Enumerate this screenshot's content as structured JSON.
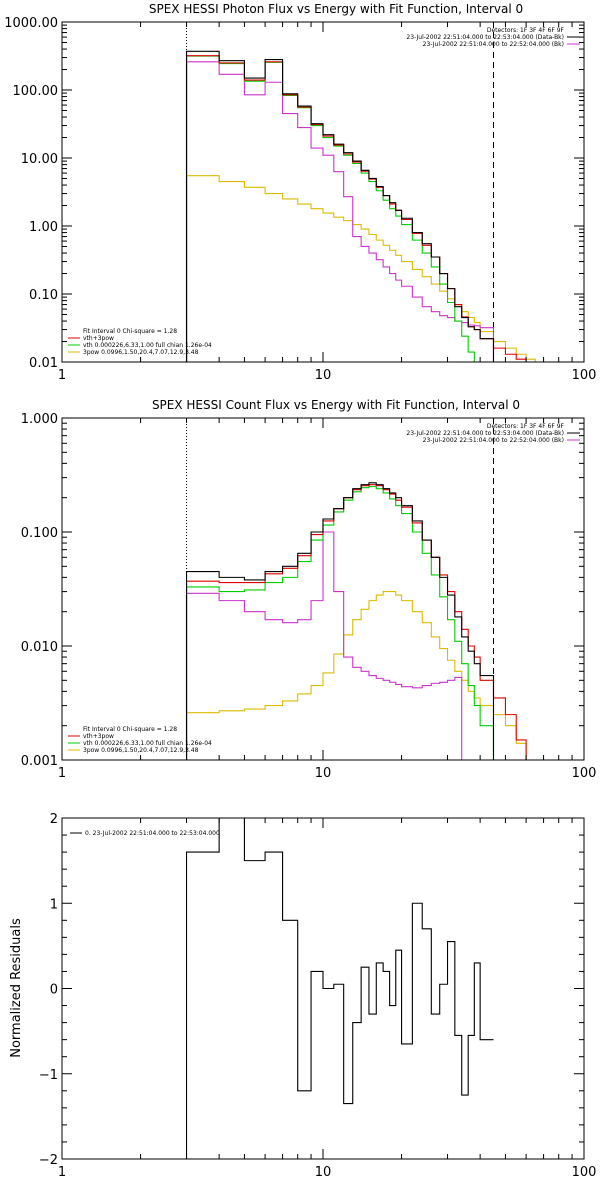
{
  "chart_data": [
    {
      "type": "line",
      "step": true,
      "title": "SPEX HESSI Photon Flux vs Energy with Fit Function, Interval 0",
      "xlabel": "",
      "ylabel": "",
      "xscale": "log",
      "yscale": "log",
      "xlim": [
        1,
        100
      ],
      "ylim": [
        0.01,
        1000
      ],
      "x_tick_labels": [
        {
          "v": 1,
          "label": "1"
        },
        {
          "v": 10,
          "label": "10"
        },
        {
          "v": 100,
          "label": "100"
        }
      ],
      "y_tick_labels": [
        {
          "v": 0.01,
          "label": "0.01"
        },
        {
          "v": 0.1,
          "label": "0.10"
        },
        {
          "v": 1,
          "label": "1.00"
        },
        {
          "v": 10,
          "label": "10.00"
        },
        {
          "v": 100,
          "label": "100.00"
        },
        {
          "v": 1000,
          "label": "1000.00"
        }
      ],
      "vlines": [
        {
          "name": "energy-range-low-line",
          "x": 3,
          "style": "dotted"
        },
        {
          "name": "energy-range-high-line",
          "x": 45,
          "style": "dashed"
        }
      ],
      "legend_top": {
        "placement": "top-right",
        "entries": [
          {
            "text": "Detectors: 1F 3F 4F 6F 9F",
            "color": ""
          },
          {
            "text": "23-Jul-2002 22:51:04.000 to 22:53:04.000 (Data-Bk)",
            "color": "#000000"
          },
          {
            "text": "23-Jul-2002 22:51:04.000 to 22:52:04.000 (Bk)",
            "color": "#cc33cc"
          }
        ]
      },
      "legend_bottom": {
        "placement": "bottom-left",
        "entries": [
          {
            "text": "Fit Interval 0   Chi-square = 1.28",
            "color": ""
          },
          {
            "text": "vth+3pow",
            "color": "#dd0000"
          },
          {
            "text": "vth 0.000226,6.33,1.00   full chian 1.26e-04",
            "color": "#00cc00"
          },
          {
            "text": "3pow 0.0996,1.50,20.4,7.07,12.9,3.48",
            "color": "#ddbb00"
          }
        ]
      },
      "edges": [
        3,
        4,
        5,
        6,
        7,
        8,
        9,
        10,
        11,
        12,
        13,
        14,
        15,
        16,
        17,
        18,
        19,
        20,
        22,
        24,
        26,
        28,
        30,
        32,
        34,
        36,
        38,
        40,
        45,
        50,
        55,
        60,
        65
      ],
      "series": [
        {
          "key": "data",
          "color": "#000000",
          "values": [
            370,
            270,
            150,
            280,
            88,
            58,
            32,
            22,
            16,
            12,
            9,
            6.6,
            5,
            3.8,
            2.8,
            2.2,
            1.7,
            1.3,
            0.8,
            0.55,
            0.35,
            0.2,
            0.12,
            0.065,
            0.045,
            0.033,
            0.03,
            0.022,
            null,
            null,
            null,
            null
          ]
        },
        {
          "key": "fit-total",
          "color": "#dd0000",
          "values": [
            320,
            250,
            140,
            260,
            85,
            56,
            31,
            21,
            15.5,
            11.5,
            8.7,
            6.4,
            4.9,
            3.7,
            2.8,
            2.1,
            1.7,
            1.25,
            0.78,
            0.52,
            0.35,
            0.2,
            0.12,
            0.07,
            0.046,
            0.033,
            0.03,
            0.022,
            0.016,
            0.013,
            0.011,
            0.01
          ]
        },
        {
          "key": "vth",
          "color": "#00cc00",
          "values": [
            315,
            245,
            135,
            255,
            83,
            55,
            30,
            20,
            15,
            11,
            8.3,
            6,
            4.5,
            3.3,
            2.4,
            1.8,
            1.4,
            1.05,
            0.62,
            0.4,
            0.25,
            0.14,
            0.075,
            0.04,
            0.024,
            0.014,
            0.01,
            null,
            null,
            null,
            null,
            null
          ]
        },
        {
          "key": "background",
          "color": "#cc33cc",
          "values": [
            260,
            170,
            85,
            130,
            45,
            28,
            14,
            11,
            6.3,
            2.7,
            0.7,
            0.5,
            0.4,
            0.32,
            0.25,
            0.2,
            0.16,
            0.13,
            0.09,
            0.065,
            0.055,
            0.048,
            0.045,
            0.04,
            0.038,
            0.035,
            0.034,
            0.032,
            null,
            null,
            null,
            null
          ]
        },
        {
          "key": "3pow",
          "color": "#ddbb00",
          "values": [
            5.5,
            4.5,
            3.7,
            3.0,
            2.5,
            2.1,
            1.8,
            1.55,
            1.35,
            1.2,
            1.05,
            0.9,
            0.75,
            0.62,
            0.52,
            0.44,
            0.37,
            0.3,
            0.23,
            0.18,
            0.14,
            0.11,
            0.085,
            0.07,
            0.055,
            0.045,
            0.038,
            0.028,
            0.02,
            0.016,
            0.013,
            0.011
          ]
        }
      ]
    },
    {
      "type": "line",
      "step": true,
      "title": "SPEX HESSI Count Flux vs Energy with Fit Function, Interval 0",
      "xlabel": "",
      "ylabel": "",
      "xscale": "log",
      "yscale": "log",
      "xlim": [
        1,
        100
      ],
      "ylim": [
        0.001,
        1
      ],
      "x_tick_labels": [
        {
          "v": 1,
          "label": "1"
        },
        {
          "v": 10,
          "label": "10"
        },
        {
          "v": 100,
          "label": "100"
        }
      ],
      "y_tick_labels": [
        {
          "v": 0.001,
          "label": "0.001"
        },
        {
          "v": 0.01,
          "label": "0.010"
        },
        {
          "v": 0.1,
          "label": "0.100"
        },
        {
          "v": 1,
          "label": "1.000"
        }
      ],
      "vlines": [
        {
          "name": "energy-range-low-line",
          "x": 3,
          "style": "dotted"
        },
        {
          "name": "energy-range-high-line",
          "x": 45,
          "style": "dashed"
        }
      ],
      "legend_top": {
        "placement": "top-right",
        "entries": [
          {
            "text": "Detectors: 1F 3F 4F 6F 9F",
            "color": ""
          },
          {
            "text": "23-Jul-2002 22:51:04.000 to 22:53:04.000 (Data-Bk)",
            "color": "#000000"
          },
          {
            "text": "23-Jul-2002 22:51:04.000 to 22:52:04.000 (Bk)",
            "color": "#cc33cc"
          }
        ]
      },
      "legend_bottom": {
        "placement": "bottom-left",
        "entries": [
          {
            "text": "Fit Interval 0   Chi-square = 1.28",
            "color": ""
          },
          {
            "text": "vth+3pow",
            "color": "#dd0000"
          },
          {
            "text": "vth 0.000226,6.33,1.00   full chian 1.26e-04",
            "color": "#00cc00"
          },
          {
            "text": "3pow 0.0996,1.50,20.4,7.07,12.9,3.48",
            "color": "#ddbb00"
          }
        ]
      },
      "edges": [
        3,
        4,
        5,
        6,
        7,
        8,
        9,
        10,
        11,
        12,
        13,
        14,
        15,
        16,
        17,
        18,
        19,
        20,
        22,
        24,
        26,
        28,
        30,
        32,
        34,
        36,
        38,
        40,
        45,
        50,
        55,
        60,
        65
      ],
      "series": [
        {
          "key": "data",
          "color": "#000000",
          "values": [
            0.045,
            0.04,
            0.038,
            0.045,
            0.05,
            0.065,
            0.1,
            0.13,
            0.16,
            0.2,
            0.24,
            0.26,
            0.27,
            0.26,
            0.24,
            0.22,
            0.2,
            0.17,
            0.125,
            0.085,
            0.06,
            0.04,
            0.028,
            0.018,
            0.012,
            0.009,
            0.007,
            0.0055,
            null,
            null,
            null,
            null
          ]
        },
        {
          "key": "fit-total",
          "color": "#dd0000",
          "values": [
            0.037,
            0.036,
            0.036,
            0.043,
            0.048,
            0.062,
            0.095,
            0.125,
            0.16,
            0.2,
            0.235,
            0.255,
            0.26,
            0.255,
            0.235,
            0.215,
            0.19,
            0.165,
            0.12,
            0.085,
            0.06,
            0.042,
            0.03,
            0.02,
            0.014,
            0.01,
            0.008,
            0.005,
            0.0035,
            0.0025,
            0.0015,
            0.001
          ]
        },
        {
          "key": "vth",
          "color": "#00cc00",
          "values": [
            0.033,
            0.03,
            0.031,
            0.036,
            0.04,
            0.055,
            0.085,
            0.115,
            0.15,
            0.19,
            0.225,
            0.245,
            0.25,
            0.24,
            0.22,
            0.195,
            0.17,
            0.145,
            0.1,
            0.065,
            0.042,
            0.027,
            0.017,
            0.011,
            0.007,
            0.0045,
            0.003,
            0.002,
            null,
            null,
            null,
            null
          ]
        },
        {
          "key": "background",
          "color": "#cc33cc",
          "values": [
            0.029,
            0.025,
            0.02,
            0.017,
            0.016,
            0.017,
            0.025,
            0.1,
            0.03,
            0.008,
            0.0065,
            0.006,
            0.0055,
            0.0052,
            0.005,
            0.0048,
            0.0046,
            0.0044,
            0.0043,
            0.0045,
            0.0047,
            0.0048,
            0.005,
            0.0053,
            null,
            null,
            null,
            null,
            null,
            null,
            null,
            null
          ]
        },
        {
          "key": "3pow",
          "color": "#ddbb00",
          "values": [
            0.0026,
            0.0027,
            0.0028,
            0.003,
            0.0033,
            0.0038,
            0.0045,
            0.0058,
            0.0085,
            0.0125,
            0.017,
            0.021,
            0.025,
            0.028,
            0.03,
            0.03,
            0.028,
            0.025,
            0.02,
            0.016,
            0.012,
            0.0095,
            0.0075,
            0.006,
            0.005,
            0.004,
            0.0035,
            0.003,
            0.0025,
            0.002,
            0.0014,
            0.001
          ]
        }
      ]
    },
    {
      "type": "line",
      "step": true,
      "title": "",
      "xlabel": "",
      "ylabel": "Normalized Residuals",
      "xscale": "log",
      "yscale": "linear",
      "xlim": [
        1,
        100
      ],
      "ylim": [
        -2,
        2
      ],
      "x_tick_labels": [
        {
          "v": 1,
          "label": "1"
        },
        {
          "v": 10,
          "label": "10"
        },
        {
          "v": 100,
          "label": "100"
        }
      ],
      "y_tick_labels": [
        {
          "v": -2,
          "label": "−2"
        },
        {
          "v": -1,
          "label": "−1"
        },
        {
          "v": 0,
          "label": "0"
        },
        {
          "v": 1,
          "label": "1"
        },
        {
          "v": 2,
          "label": "2"
        }
      ],
      "legend_top": {
        "placement": "top-left",
        "entries": [
          {
            "text": "0. 23-Jul-2002 22:51:04.000 to 22:53:04.000",
            "color": "#000000"
          }
        ]
      },
      "edges": [
        3,
        4,
        5,
        6,
        7,
        8,
        9,
        10,
        11,
        12,
        13,
        14,
        15,
        16,
        17,
        18,
        19,
        20,
        22,
        24,
        26,
        28,
        30,
        32,
        34,
        36,
        38,
        40,
        45
      ],
      "series": [
        {
          "key": "residuals",
          "color": "#000000",
          "values": [
            1.6,
            2.0,
            1.5,
            1.6,
            0.8,
            -1.2,
            0.2,
            0.0,
            0.05,
            -1.35,
            -0.4,
            0.25,
            -0.3,
            0.3,
            0.2,
            -0.2,
            0.45,
            -0.65,
            1.0,
            0.7,
            -0.3,
            0.05,
            0.55,
            -0.55,
            -1.25,
            -0.55,
            0.3,
            -0.6
          ]
        }
      ]
    }
  ]
}
